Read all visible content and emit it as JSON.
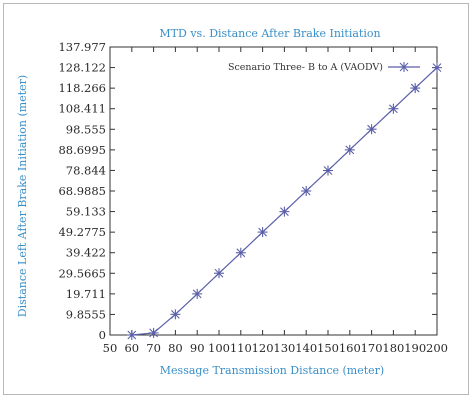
{
  "chart_data": {
    "type": "line",
    "title": "MTD vs. Distance After Brake Initiation",
    "xlabel": "Message Transmission Distance (meter)",
    "ylabel": "Distance Left After Brake Initiation (meter)",
    "x_ticks": [
      "50",
      "60",
      "70",
      "80",
      "90",
      "100",
      "110",
      "120",
      "130",
      "140",
      "150",
      "160",
      "170",
      "180",
      "190",
      "200"
    ],
    "y_ticks": [
      "0",
      "9.8555",
      "19.711",
      "29.5665",
      "39.422",
      "49.2775",
      "59.133",
      "68.9885",
      "78.844",
      "88.6995",
      "98.555",
      "108.411",
      "118.266",
      "128.122",
      "137.977"
    ],
    "xlim": [
      50,
      200
    ],
    "ylim": [
      0,
      137.977
    ],
    "grid": false,
    "legend_position": "top-right",
    "series": [
      {
        "name": "Scenario Three- B to A (VAODV)",
        "color": "#5a5fa8",
        "x": [
          60,
          70,
          80,
          90,
          100,
          110,
          120,
          130,
          140,
          150,
          160,
          170,
          180,
          190,
          200
        ],
        "values": [
          0,
          1.0,
          9.9,
          19.7,
          29.6,
          39.4,
          49.3,
          59.1,
          69.0,
          78.8,
          88.7,
          98.6,
          108.4,
          118.3,
          128.1
        ]
      }
    ]
  }
}
